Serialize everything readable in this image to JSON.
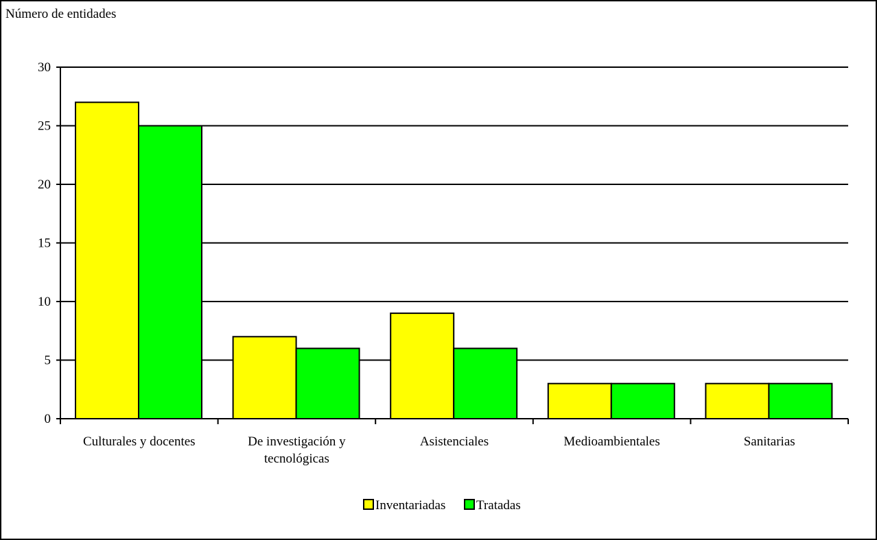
{
  "chart_data": {
    "type": "bar",
    "title": "",
    "ylabel": "Número de entidades",
    "xlabel": "",
    "categories": [
      [
        "Culturales y docentes"
      ],
      [
        "De investigación y",
        "tecnológicas"
      ],
      [
        "Asistenciales"
      ],
      [
        "Medioambientales"
      ],
      [
        "Sanitarias"
      ]
    ],
    "series": [
      {
        "name": "Inventariadas",
        "color": "#ffff00",
        "values": [
          27,
          7,
          9,
          3,
          3
        ]
      },
      {
        "name": "Tratadas",
        "color": "#00ff00",
        "values": [
          25,
          6,
          6,
          3,
          3
        ]
      }
    ],
    "ylim": [
      0,
      30
    ],
    "yticks": [
      0,
      5,
      10,
      15,
      20,
      25,
      30
    ],
    "grid": true,
    "legend_position": "bottom-center"
  }
}
